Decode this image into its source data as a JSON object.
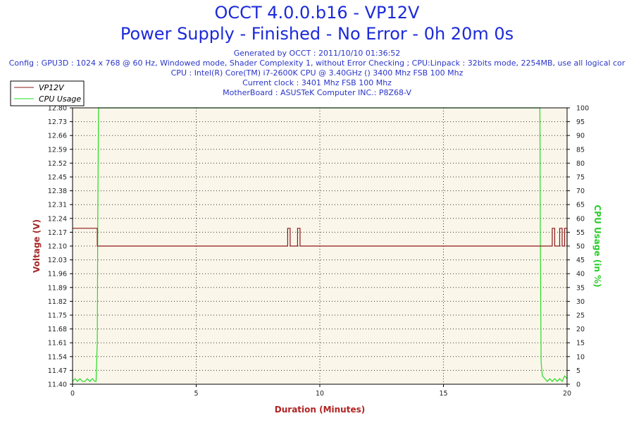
{
  "header": {
    "title": "OCCT 4.0.0.b16 - VP12V",
    "subtitle": "Power Supply - Finished - No Error - 0h 20m 0s",
    "generated": "Generated by OCCT : 2011/10/10 01:36:52",
    "config": "Config : GPU3D : 1024 x 768 @ 60 Hz, Windowed mode, Shader Complexity 1, without Error Checking ; CPU:Linpack : 32bits mode, 2254MB, use all logical cor",
    "cpu": "CPU : Intel(R) Core(TM) i7-2600K CPU @ 3.40GHz () 3400 Mhz FSB 100 Mhz",
    "clock": "Current clock : 3401 Mhz FSB 100 Mhz",
    "motherboard": "MotherBoard : ASUSTeK Computer INC.: P8Z68-V"
  },
  "colors": {
    "vp12v": "#8b1a1a",
    "cpu_usage": "#22dd22",
    "plot_bg": "#fbf6ea",
    "voltage_axis": "#a52a2a",
    "cpu_axis": "#2ecc2e",
    "duration_axis": "#b22222"
  },
  "chart_data": {
    "type": "line",
    "title": "OCCT 4.0.0.b16 - VP12V",
    "xlabel": "Duration (Minutes)",
    "ylabel": "Voltage (V)",
    "y2label": "CPU Usage (in %)",
    "xlim": [
      0,
      20
    ],
    "ylim": [
      11.4,
      12.8
    ],
    "y2lim": [
      0,
      100
    ],
    "x_ticks": [
      "0",
      "5",
      "10",
      "15",
      "20"
    ],
    "y_ticks": [
      "11.40",
      "11.47",
      "11.54",
      "11.61",
      "11.68",
      "11.75",
      "11.82",
      "11.89",
      "11.96",
      "12.03",
      "12.10",
      "12.17",
      "12.24",
      "12.31",
      "12.38",
      "12.45",
      "12.52",
      "12.59",
      "12.66",
      "12.73",
      "12.80"
    ],
    "y2_ticks": [
      "0",
      "5",
      "10",
      "15",
      "20",
      "25",
      "30",
      "35",
      "40",
      "45",
      "50",
      "55",
      "60",
      "65",
      "70",
      "75",
      "80",
      "85",
      "90",
      "95",
      "100"
    ],
    "grid": true,
    "legend_position": "top-left",
    "series": [
      {
        "name": "VP12V",
        "axis": "left",
        "x": [
          0,
          1.0,
          1.0,
          8.7,
          8.7,
          8.8,
          8.8,
          9.1,
          9.1,
          9.2,
          9.2,
          19.4,
          19.4,
          19.5,
          19.5,
          19.7,
          19.7,
          19.8,
          19.8,
          19.9,
          19.9,
          20.0,
          20.0
        ],
        "y": [
          12.19,
          12.19,
          12.1,
          12.1,
          12.19,
          12.19,
          12.1,
          12.1,
          12.19,
          12.19,
          12.1,
          12.1,
          12.19,
          12.19,
          12.1,
          12.1,
          12.19,
          12.19,
          12.1,
          12.1,
          12.19,
          12.19,
          12.1
        ]
      },
      {
        "name": "CPU Usage",
        "axis": "right",
        "x": [
          0,
          0.1,
          0.2,
          0.3,
          0.4,
          0.5,
          0.6,
          0.7,
          0.8,
          0.9,
          0.95,
          1.0,
          1.02,
          1.05,
          2.0,
          5.0,
          10.0,
          15.0,
          18.9,
          18.92,
          18.95,
          19.0,
          19.1,
          19.2,
          19.3,
          19.4,
          19.5,
          19.6,
          19.7,
          19.8,
          19.9,
          20.0
        ],
        "y": [
          1,
          2,
          1,
          2,
          1,
          1,
          2,
          1,
          2,
          1,
          1,
          15,
          60,
          100,
          100,
          100,
          100,
          100,
          100,
          50,
          8,
          3,
          2,
          1,
          2,
          1,
          2,
          1,
          2,
          1,
          3,
          2
        ]
      }
    ]
  }
}
